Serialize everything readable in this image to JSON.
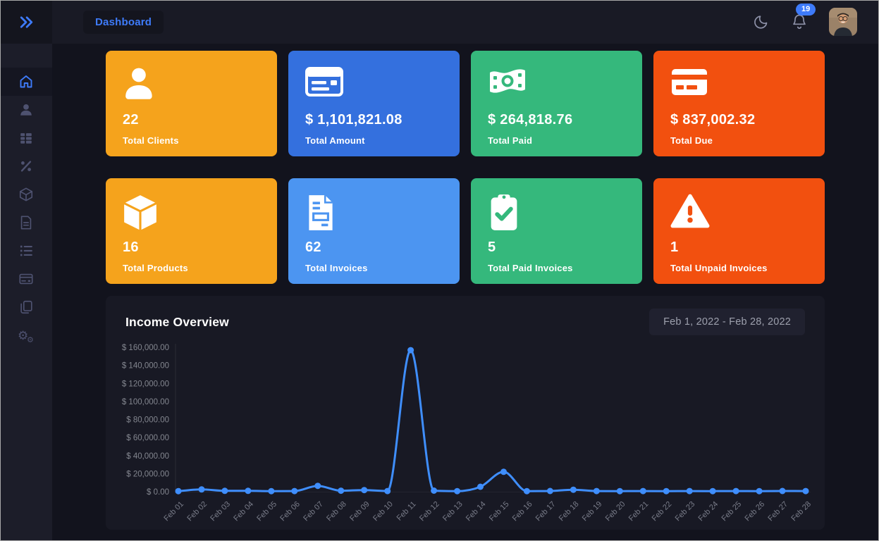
{
  "topbar": {
    "toggle_icon": "chevrons-right-icon",
    "title": "Dashboard",
    "theme_icon": "moon-icon",
    "notifications": {
      "icon": "bell-icon",
      "count": "19"
    },
    "avatar_icon": "user-photo-avatar"
  },
  "sidebar": {
    "items": [
      {
        "id": "dashboard",
        "icon": "home-icon",
        "active": true
      },
      {
        "id": "clients",
        "icon": "user-icon",
        "active": false
      },
      {
        "id": "items",
        "icon": "table-list-icon",
        "active": false
      },
      {
        "id": "taxes",
        "icon": "percent-icon",
        "active": false
      },
      {
        "id": "products",
        "icon": "box-icon",
        "active": false
      },
      {
        "id": "documents",
        "icon": "file-icon",
        "active": false
      },
      {
        "id": "orders",
        "icon": "ordered-list-icon",
        "active": false
      },
      {
        "id": "payments",
        "icon": "credit-card-icon",
        "active": false
      },
      {
        "id": "copies",
        "icon": "copy-icon",
        "active": false
      },
      {
        "id": "settings",
        "icon": "gears-icon",
        "active": false
      }
    ]
  },
  "cards": [
    {
      "value": "22",
      "label": "Total Clients",
      "color": "#f5a31c",
      "icon": "person-icon"
    },
    {
      "value": "$ 1,101,821.08",
      "label": "Total Amount",
      "color": "#3470de",
      "icon": "credit-card-front-icon"
    },
    {
      "value": "$ 264,818.76",
      "label": "Total Paid",
      "color": "#35b87c",
      "icon": "money-bill-icon"
    },
    {
      "value": "$ 837,002.32",
      "label": "Total Due",
      "color": "#f2500f",
      "icon": "credit-card-stripe-icon"
    },
    {
      "value": "16",
      "label": "Total Products",
      "color": "#f5a31c",
      "icon": "box-cube-icon"
    },
    {
      "value": "62",
      "label": "Total Invoices",
      "color": "#4c95f1",
      "icon": "invoice-icon"
    },
    {
      "value": "5",
      "label": "Total Paid Invoices",
      "color": "#35b87c",
      "icon": "clipboard-check-icon"
    },
    {
      "value": "1",
      "label": "Total Unpaid Invoices",
      "color": "#f2500f",
      "icon": "warning-triangle-icon"
    }
  ],
  "chart": {
    "title": "Income Overview",
    "date_range": "Feb 1, 2022 - Feb 28, 2022"
  },
  "chart_data": {
    "type": "line",
    "title": "Income Overview",
    "x": [
      "Feb 01",
      "Feb 02",
      "Feb 03",
      "Feb 04",
      "Feb 05",
      "Feb 06",
      "Feb 07",
      "Feb 08",
      "Feb 09",
      "Feb 10",
      "Feb 11",
      "Feb 12",
      "Feb 13",
      "Feb 14",
      "Feb 15",
      "Feb 16",
      "Feb 17",
      "Feb 18",
      "Feb 19",
      "Feb 20",
      "Feb 21",
      "Feb 22",
      "Feb 23",
      "Feb 24",
      "Feb 25",
      "Feb 26",
      "Feb 27",
      "Feb 28"
    ],
    "values": [
      600,
      2500,
      900,
      900,
      600,
      700,
      6500,
      1100,
      1800,
      700,
      156800,
      1200,
      600,
      5500,
      22000,
      600,
      800,
      2200,
      700,
      600,
      700,
      600,
      700,
      600,
      700,
      600,
      800,
      700
    ],
    "ylim": [
      0,
      160000
    ],
    "ytick_step": 20000,
    "y_tick_labels": [
      "$ 160,000.00",
      "$ 140,000.00",
      "$ 120,000.00",
      "$ 100,000.00",
      "$ 80,000.00",
      "$ 60,000.00",
      "$ 40,000.00",
      "$ 20,000.00",
      "$ 0.00"
    ],
    "grid": false,
    "legend": "none",
    "line_color": "#3f8efc",
    "point_color": "#3f8efc",
    "axis_label_color": "#83868f"
  }
}
